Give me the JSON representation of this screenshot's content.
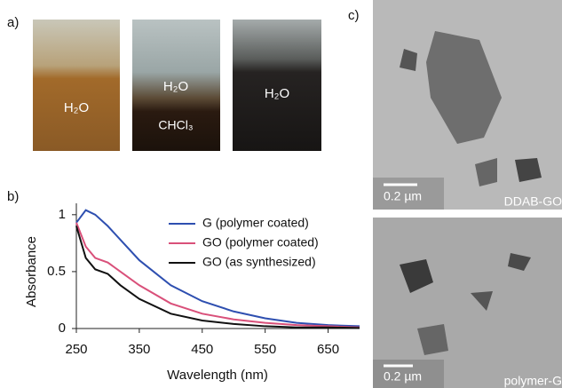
{
  "panels": {
    "a": {
      "label": "a)",
      "vials": [
        {
          "labels": [
            "H₂O"
          ]
        },
        {
          "labels": [
            "H₂O",
            "CHCl₃"
          ]
        },
        {
          "labels": [
            "H₂O"
          ]
        }
      ]
    },
    "b": {
      "label": "b)"
    },
    "c": {
      "label": "c)",
      "images": [
        {
          "scale": "0.2 µm",
          "caption": "DDAB-GO"
        },
        {
          "scale": "0.2 µm",
          "caption": "polymer-G"
        }
      ]
    }
  },
  "chart_data": {
    "type": "line",
    "x_label": "Wavelength (nm)",
    "y_label": "Absorbance",
    "x": [
      250,
      265,
      280,
      300,
      320,
      350,
      400,
      450,
      500,
      550,
      600,
      650,
      700
    ],
    "series": [
      {
        "name": "G (polymer coated)",
        "color": "#2e4fb0",
        "values": [
          0.93,
          1.04,
          1.0,
          0.9,
          0.78,
          0.6,
          0.38,
          0.24,
          0.15,
          0.09,
          0.05,
          0.03,
          0.02
        ]
      },
      {
        "name": "GO (polymer coated)",
        "color": "#d9507a",
        "values": [
          0.93,
          0.72,
          0.62,
          0.58,
          0.5,
          0.38,
          0.22,
          0.13,
          0.08,
          0.05,
          0.03,
          0.02,
          0.01
        ]
      },
      {
        "name": "GO (as synthesized)",
        "color": "#111111",
        "values": [
          0.9,
          0.62,
          0.52,
          0.48,
          0.38,
          0.26,
          0.13,
          0.07,
          0.04,
          0.02,
          0.01,
          0.01,
          0.005
        ]
      }
    ],
    "xlim": [
      250,
      700
    ],
    "ylim": [
      0,
      1.1
    ],
    "xticks": [
      250,
      350,
      450,
      550,
      650
    ],
    "yticks": [
      0,
      0.5,
      1
    ]
  }
}
